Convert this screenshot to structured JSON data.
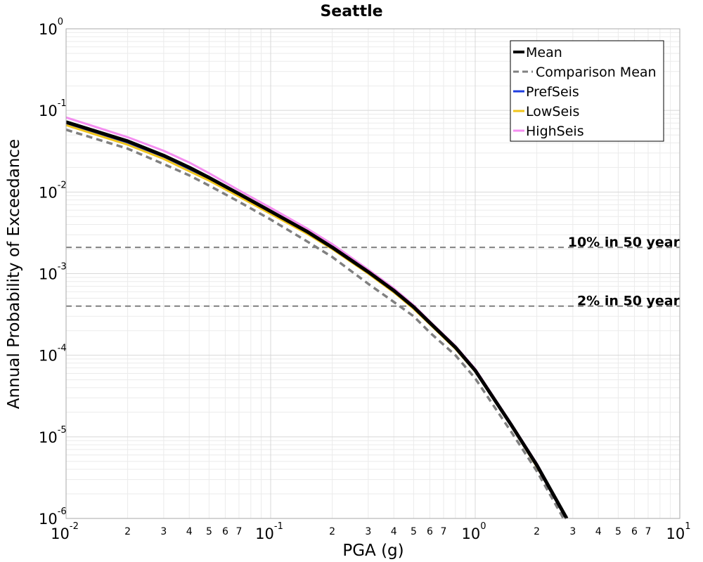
{
  "chart_data": {
    "type": "line",
    "title": "Seattle",
    "xlabel": "PGA (g)",
    "ylabel": "Annual Probability of Exceedance",
    "xscale": "log",
    "yscale": "log",
    "xlim": [
      0.01,
      10
    ],
    "ylim": [
      1e-06,
      1
    ],
    "grid": true,
    "legend_position": "top-right",
    "x_major_ticks": [
      {
        "base": "10",
        "exp": "-2"
      },
      {
        "base": "10",
        "exp": "-1"
      },
      {
        "base": "10",
        "exp": "0"
      },
      {
        "base": "10",
        "exp": "1"
      }
    ],
    "x_minor_tick_labels": [
      "2",
      "3",
      "4",
      "5",
      "6",
      "7"
    ],
    "y_major_ticks": [
      {
        "base": "10",
        "exp": "0"
      },
      {
        "base": "10",
        "exp": "-1"
      },
      {
        "base": "10",
        "exp": "-2"
      },
      {
        "base": "10",
        "exp": "-3"
      },
      {
        "base": "10",
        "exp": "-4"
      },
      {
        "base": "10",
        "exp": "-5"
      },
      {
        "base": "10",
        "exp": "-6"
      }
    ],
    "reference_lines": [
      {
        "label": "10% in 50 year",
        "y": 0.0021,
        "color": "#808080"
      },
      {
        "label": "2% in 50 year",
        "y": 0.0004,
        "color": "#808080"
      }
    ],
    "series": [
      {
        "name": "Mean",
        "color": "#000000",
        "style": "solid",
        "x": [
          0.01,
          0.02,
          0.03,
          0.04,
          0.05,
          0.07,
          0.1,
          0.15,
          0.2,
          0.3,
          0.4,
          0.5,
          0.6,
          0.8,
          1.0,
          1.5,
          2.0,
          2.8
        ],
        "y": [
          0.072,
          0.042,
          0.028,
          0.02,
          0.015,
          0.0095,
          0.0058,
          0.0033,
          0.0021,
          0.00105,
          0.00062,
          0.00039,
          0.00025,
          0.000125,
          6.5e-05,
          1.4e-05,
          4.5e-06,
          1e-06
        ]
      },
      {
        "name": "Comparison Mean",
        "color": "#808080",
        "style": "dashed",
        "x": [
          0.01,
          0.02,
          0.03,
          0.04,
          0.05,
          0.07,
          0.1,
          0.15,
          0.2,
          0.3,
          0.4,
          0.5,
          0.6,
          0.8,
          1.0,
          1.5,
          2.0,
          2.7
        ],
        "y": [
          0.058,
          0.034,
          0.022,
          0.016,
          0.012,
          0.0076,
          0.0046,
          0.0025,
          0.0016,
          0.00075,
          0.00045,
          0.0003,
          0.00019,
          0.0001,
          5.2e-05,
          1.15e-05,
          3.8e-06,
          1e-06
        ]
      },
      {
        "name": "PrefSeis",
        "color": "#1f3ee0",
        "style": "solid",
        "x": [
          0.01,
          0.02,
          0.03,
          0.04,
          0.05,
          0.07,
          0.1,
          0.15,
          0.2,
          0.3,
          0.4,
          0.5,
          0.6,
          0.8,
          1.0,
          1.5,
          2.0,
          2.8
        ],
        "y": [
          0.068,
          0.04,
          0.027,
          0.019,
          0.0145,
          0.0092,
          0.0056,
          0.0032,
          0.00205,
          0.00102,
          0.0006,
          0.00038,
          0.000245,
          0.000123,
          6.4e-05,
          1.38e-05,
          4.4e-06,
          1e-06
        ]
      },
      {
        "name": "LowSeis",
        "color": "#f0c419",
        "style": "solid",
        "x": [
          0.01,
          0.02,
          0.03,
          0.04,
          0.05,
          0.07,
          0.1,
          0.15,
          0.2,
          0.3,
          0.4,
          0.5,
          0.6,
          0.8,
          1.0,
          1.5,
          2.0,
          2.8
        ],
        "y": [
          0.066,
          0.038,
          0.0255,
          0.018,
          0.0138,
          0.0088,
          0.0054,
          0.0031,
          0.002,
          0.001,
          0.00059,
          0.00037,
          0.00024,
          0.00012,
          6.3e-05,
          1.36e-05,
          4.3e-06,
          1e-06
        ]
      },
      {
        "name": "HighSeis",
        "color": "#f48ef0",
        "style": "solid",
        "x": [
          0.01,
          0.02,
          0.03,
          0.04,
          0.05,
          0.07,
          0.1,
          0.15,
          0.2,
          0.3,
          0.4,
          0.5,
          0.6,
          0.8,
          1.0,
          1.5,
          2.0,
          2.8
        ],
        "y": [
          0.082,
          0.047,
          0.032,
          0.023,
          0.017,
          0.0105,
          0.0064,
          0.0036,
          0.0023,
          0.00112,
          0.00066,
          0.00041,
          0.00026,
          0.00013,
          6.8e-05,
          1.45e-05,
          4.7e-06,
          1e-06
        ]
      }
    ]
  }
}
